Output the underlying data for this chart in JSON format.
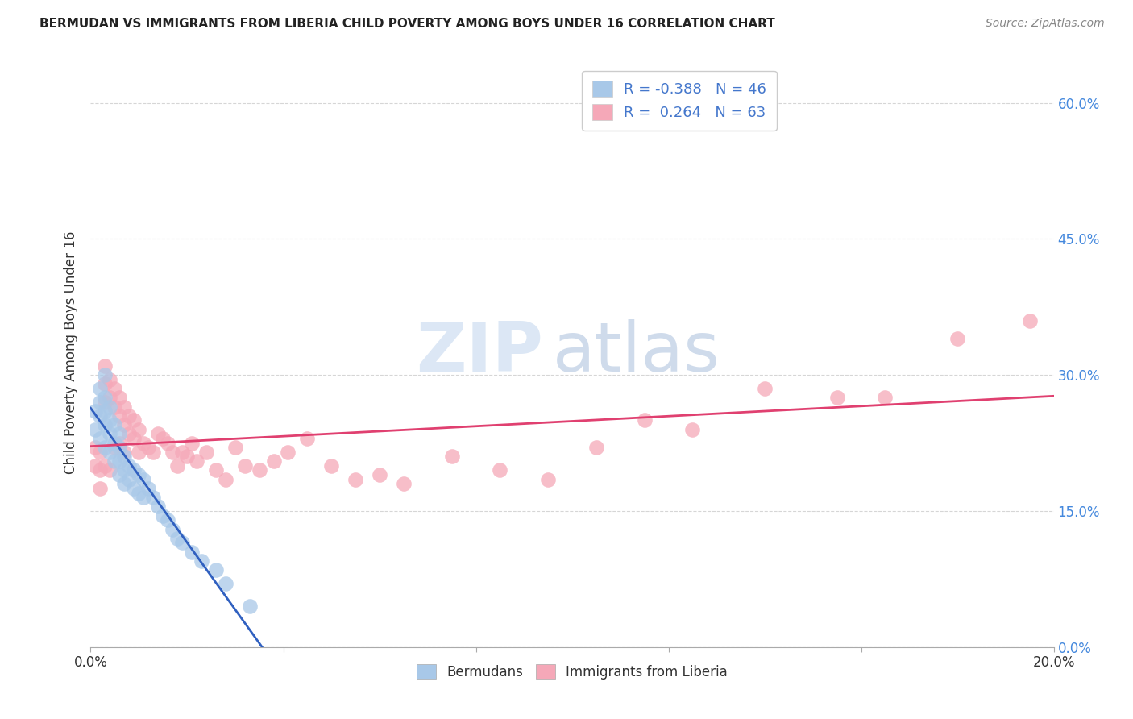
{
  "title": "BERMUDAN VS IMMIGRANTS FROM LIBERIA CHILD POVERTY AMONG BOYS UNDER 16 CORRELATION CHART",
  "source": "Source: ZipAtlas.com",
  "ylabel": "Child Poverty Among Boys Under 16",
  "xlim": [
    0.0,
    0.2
  ],
  "ylim": [
    0.0,
    0.65
  ],
  "xticks": [
    0.0,
    0.04,
    0.08,
    0.12,
    0.16,
    0.2
  ],
  "xtick_labels_outer": [
    "0.0%",
    "20.0%"
  ],
  "yticks": [
    0.0,
    0.15,
    0.3,
    0.45,
    0.6
  ],
  "right_ytick_labels": [
    "0.0%",
    "15.0%",
    "30.0%",
    "45.0%",
    "60.0%"
  ],
  "watermark_zip": "ZIP",
  "watermark_atlas": "atlas",
  "blue_R": -0.388,
  "blue_N": 46,
  "pink_R": 0.264,
  "pink_N": 63,
  "blue_color": "#a8c8e8",
  "blue_line_color": "#3060c0",
  "pink_color": "#f5a8b8",
  "pink_line_color": "#e04070",
  "legend_label_blue": "Bermudans",
  "legend_label_pink": "Immigrants from Liberia",
  "blue_x": [
    0.001,
    0.001,
    0.002,
    0.002,
    0.002,
    0.002,
    0.003,
    0.003,
    0.003,
    0.003,
    0.003,
    0.004,
    0.004,
    0.004,
    0.004,
    0.005,
    0.005,
    0.005,
    0.006,
    0.006,
    0.006,
    0.006,
    0.007,
    0.007,
    0.007,
    0.008,
    0.008,
    0.009,
    0.009,
    0.01,
    0.01,
    0.011,
    0.011,
    0.012,
    0.013,
    0.014,
    0.015,
    0.016,
    0.017,
    0.018,
    0.019,
    0.021,
    0.023,
    0.026,
    0.028,
    0.033
  ],
  "blue_y": [
    0.26,
    0.24,
    0.285,
    0.27,
    0.255,
    0.23,
    0.3,
    0.275,
    0.26,
    0.245,
    0.22,
    0.265,
    0.25,
    0.235,
    0.215,
    0.245,
    0.225,
    0.205,
    0.235,
    0.22,
    0.205,
    0.19,
    0.21,
    0.195,
    0.18,
    0.2,
    0.185,
    0.195,
    0.175,
    0.19,
    0.17,
    0.185,
    0.165,
    0.175,
    0.165,
    0.155,
    0.145,
    0.14,
    0.13,
    0.12,
    0.115,
    0.105,
    0.095,
    0.085,
    0.07,
    0.045
  ],
  "pink_x": [
    0.001,
    0.001,
    0.002,
    0.002,
    0.002,
    0.003,
    0.003,
    0.003,
    0.003,
    0.004,
    0.004,
    0.004,
    0.005,
    0.005,
    0.005,
    0.006,
    0.006,
    0.006,
    0.007,
    0.007,
    0.007,
    0.008,
    0.008,
    0.009,
    0.009,
    0.01,
    0.01,
    0.011,
    0.012,
    0.013,
    0.014,
    0.015,
    0.016,
    0.017,
    0.018,
    0.019,
    0.02,
    0.021,
    0.022,
    0.024,
    0.026,
    0.028,
    0.03,
    0.032,
    0.035,
    0.038,
    0.041,
    0.045,
    0.05,
    0.055,
    0.06,
    0.065,
    0.075,
    0.085,
    0.095,
    0.105,
    0.115,
    0.125,
    0.14,
    0.155,
    0.165,
    0.18,
    0.195
  ],
  "pink_y": [
    0.22,
    0.2,
    0.215,
    0.195,
    0.175,
    0.31,
    0.29,
    0.27,
    0.2,
    0.295,
    0.275,
    0.195,
    0.285,
    0.265,
    0.22,
    0.275,
    0.255,
    0.225,
    0.265,
    0.245,
    0.215,
    0.255,
    0.235,
    0.25,
    0.23,
    0.24,
    0.215,
    0.225,
    0.22,
    0.215,
    0.235,
    0.23,
    0.225,
    0.215,
    0.2,
    0.215,
    0.21,
    0.225,
    0.205,
    0.215,
    0.195,
    0.185,
    0.22,
    0.2,
    0.195,
    0.205,
    0.215,
    0.23,
    0.2,
    0.185,
    0.19,
    0.18,
    0.21,
    0.195,
    0.185,
    0.22,
    0.25,
    0.24,
    0.285,
    0.275,
    0.275,
    0.34,
    0.36
  ]
}
